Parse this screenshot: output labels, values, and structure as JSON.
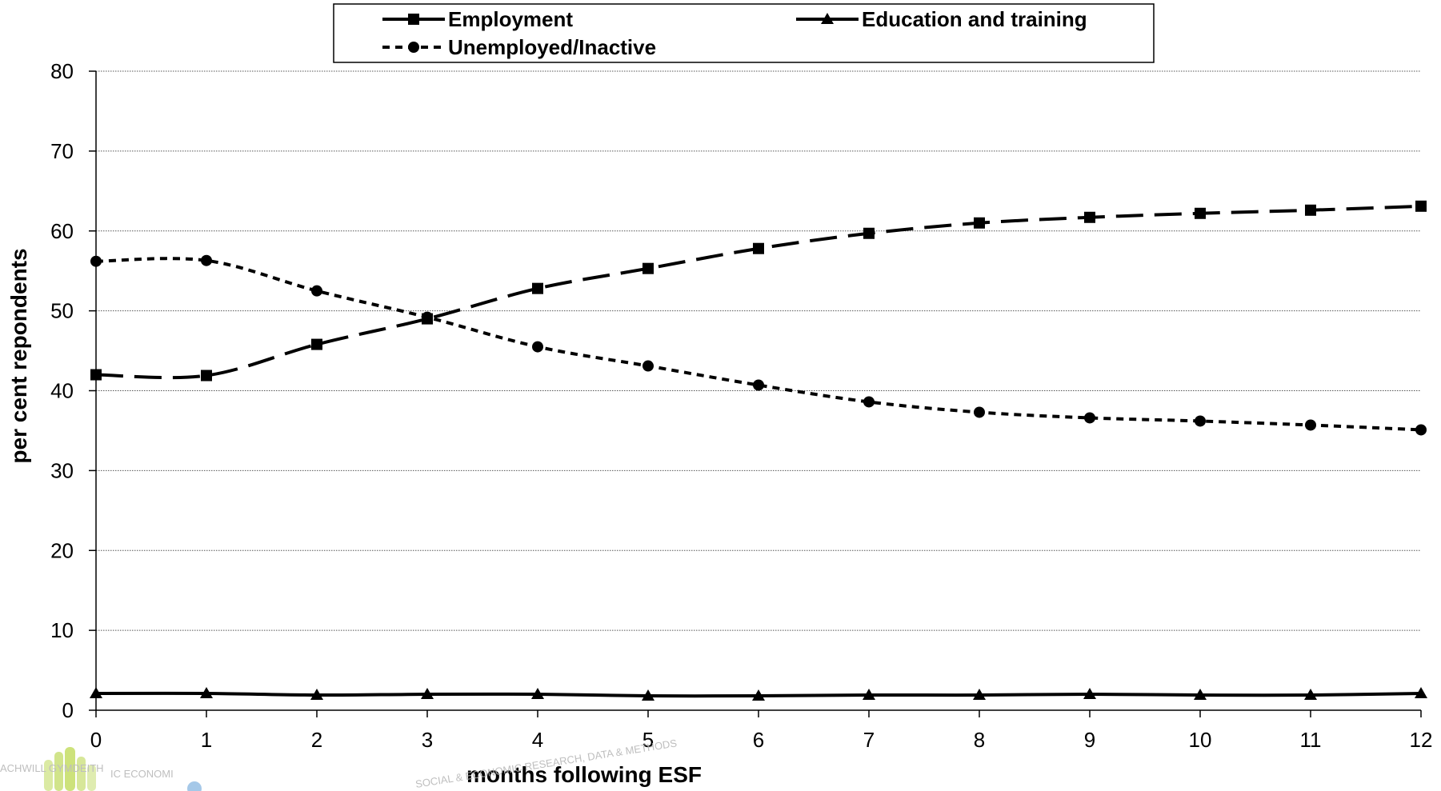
{
  "chart_data": {
    "type": "line",
    "title": "",
    "xlabel": "months following ESF",
    "ylabel": "per cent repondents",
    "x": [
      0,
      1,
      2,
      3,
      4,
      5,
      6,
      7,
      8,
      9,
      10,
      11,
      12
    ],
    "xlim": [
      0,
      12
    ],
    "ylim": [
      0,
      80
    ],
    "yticks": [
      0,
      10,
      20,
      30,
      40,
      50,
      60,
      70,
      80
    ],
    "grid": "horizontal dotted",
    "legend": "top",
    "series": [
      {
        "name": "Employment",
        "marker": "square",
        "dash": "long-dash",
        "color": "#000000",
        "values": [
          42.0,
          41.9,
          45.8,
          49.0,
          52.8,
          55.3,
          57.8,
          59.7,
          61.0,
          61.7,
          62.2,
          62.6,
          63.1
        ]
      },
      {
        "name": "Education and training",
        "marker": "triangle",
        "dash": "solid",
        "color": "#000000",
        "values": [
          2.1,
          2.1,
          1.9,
          2.0,
          2.0,
          1.8,
          1.8,
          1.9,
          1.9,
          2.0,
          1.9,
          1.9,
          2.1
        ]
      },
      {
        "name": "Unemployed/Inactive",
        "marker": "circle",
        "dash": "short-dash",
        "color": "#000000",
        "values": [
          56.2,
          56.3,
          52.5,
          49.2,
          45.5,
          43.1,
          40.7,
          38.6,
          37.3,
          36.6,
          36.2,
          35.7,
          35.1
        ]
      }
    ]
  },
  "watermark": {
    "left_text": "ACHWILL GYMDEITH",
    "left_text_2": "IC ECONOMI",
    "center_text": "SOCIAL & ECONOMIC RESEARCH, DATA & METHODS"
  }
}
